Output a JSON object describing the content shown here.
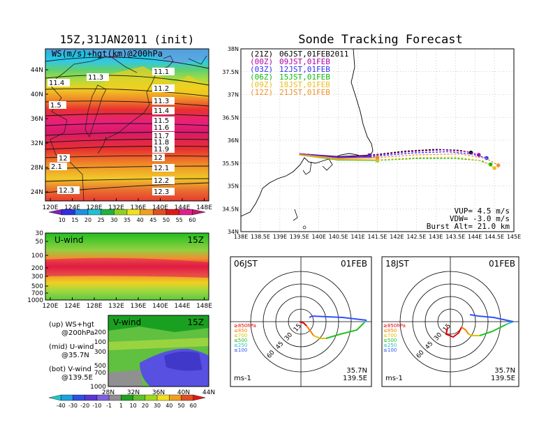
{
  "left": {
    "title": "15Z,31JAN2011 (init)",
    "map_label": "WS(m/s)+hgt(km)@200hPa",
    "lat_ticks": [
      "44N",
      "40N",
      "36N",
      "32N",
      "28N",
      "24N"
    ],
    "lon_ticks": [
      "120E",
      "124E",
      "128E",
      "132E",
      "136E",
      "140E",
      "144E",
      "148E"
    ],
    "contours": [
      "11.1",
      "11.2",
      "11.3",
      "11.4",
      "11.5",
      "11.6",
      "11.7",
      "11.8",
      "11.9",
      "12",
      "12.1",
      "12.2",
      "12.3"
    ],
    "contour_west": [
      "11.4",
      "11.3",
      "1.5",
      "12",
      "2.1",
      "12.3"
    ],
    "colorbar_ws": [
      "10",
      "15",
      "20",
      "25",
      "30",
      "35",
      "40",
      "45",
      "50",
      "55",
      "60"
    ],
    "u_title": "U-wind",
    "u_time": "15Z",
    "p_ticks": [
      "30",
      "50",
      "100",
      "200",
      "300",
      "500",
      "700",
      "1000"
    ],
    "v_title": "V-wind",
    "v_time": "15Z",
    "v_p_ticks": [
      "200",
      "100",
      "300",
      "500",
      "700",
      "1000"
    ],
    "v_lat_ticks": [
      "28N",
      "32N",
      "36N",
      "40N",
      "44N"
    ],
    "colorbar_uv": [
      "-40",
      "-30",
      "-20",
      "-10",
      "-1",
      "1",
      "10",
      "20",
      "30",
      "40",
      "50",
      "60"
    ],
    "legend": [
      {
        "a": "(up) WS+hgt",
        "b": "@200hPa"
      },
      {
        "a": "(mid) U-wind",
        "b": "@35.7N"
      },
      {
        "a": "(bot) V-wind",
        "b": "@139.5E"
      }
    ]
  },
  "right": {
    "title": "Sonde Tracking Forecast",
    "times": [
      {
        "z": "(21Z)",
        "jst": "06JST,01FEB2011",
        "color": "#000000"
      },
      {
        "z": "(00Z)",
        "jst": "09JST,01FEB",
        "color": "#b000b0"
      },
      {
        "z": "(03Z)",
        "jst": "12JST,01FEB",
        "color": "#3030ff"
      },
      {
        "z": "(06Z)",
        "jst": "15JST,01FEB",
        "color": "#10b810"
      },
      {
        "z": "(09Z)",
        "jst": "18JST,01FEB",
        "color": "#e8c020"
      },
      {
        "z": "(12Z)",
        "jst": "21JST,01FEB",
        "color": "#f09030"
      }
    ],
    "lat_ticks": [
      "38N",
      "37.5N",
      "37N",
      "36.5N",
      "36N",
      "35.5N",
      "35N",
      "34.5N",
      "34N"
    ],
    "lon_ticks": [
      "138E",
      "138.5E",
      "139E",
      "139.5E",
      "140E",
      "140.5E",
      "141E",
      "141.5E",
      "142E",
      "142.5E",
      "143E",
      "143.5E",
      "144E",
      "144.5E",
      "145E"
    ],
    "vup": "VUP= 4.5 m/s",
    "vdw": "VDW= -3.0 m/s",
    "burst": "Burst Alt= 21.0 km"
  },
  "hodographs": [
    {
      "time": "06JST",
      "date": "01FEB",
      "lat": "35.7N",
      "lon": "139.5E",
      "unit": "ms-1"
    },
    {
      "time": "18JST",
      "date": "01FEB",
      "lat": "35.7N",
      "lon": "139.5E",
      "unit": "ms-1"
    }
  ],
  "hodo_rings": [
    "15",
    "30",
    "45",
    "60"
  ],
  "hodo_legend": [
    {
      "t": "≥850hPa",
      "c": "#e00000"
    },
    {
      "t": "≤850",
      "c": "#f08000"
    },
    {
      "t": "≤700",
      "c": "#e0c000"
    },
    {
      "t": "≤500",
      "c": "#20c020"
    },
    {
      "t": "≤250",
      "c": "#20c0c0"
    },
    {
      "t": "≤100",
      "c": "#3050ff"
    }
  ],
  "chart_data": {
    "type": "line",
    "title": "Sonde Tracking Forecast",
    "xlim": [
      138,
      145
    ],
    "ylim": [
      34,
      38
    ],
    "series": [
      {
        "name": "(21Z) 06JST,01FEB2011",
        "color": "#000000",
        "x": [
          139.5,
          140.5,
          141.3,
          142.2,
          143.0,
          143.6,
          143.9
        ],
        "y": [
          35.7,
          35.64,
          35.67,
          35.76,
          35.8,
          35.78,
          35.73
        ]
      },
      {
        "name": "(00Z) 09JST,01FEB",
        "color": "#b000b0",
        "x": [
          139.5,
          140.5,
          141.3,
          142.3,
          143.2,
          143.8,
          144.1
        ],
        "y": [
          35.7,
          35.63,
          35.66,
          35.75,
          35.79,
          35.75,
          35.68
        ]
      },
      {
        "name": "(03Z) 12JST,01FEB",
        "color": "#3030ff",
        "x": [
          139.5,
          140.5,
          141.3,
          142.4,
          143.3,
          143.9,
          144.3
        ],
        "y": [
          35.7,
          35.62,
          35.64,
          35.72,
          35.75,
          35.7,
          35.61
        ]
      },
      {
        "name": "(06Z) 15JST,01FEB",
        "color": "#10b810",
        "x": [
          139.5,
          140.5,
          141.5,
          142.5,
          143.5,
          144.1,
          144.4
        ],
        "y": [
          35.68,
          35.57,
          35.56,
          35.6,
          35.6,
          35.56,
          35.47
        ]
      },
      {
        "name": "(09Z) 18JST,01FEB",
        "color": "#e8c020",
        "x": [
          139.5,
          140.5,
          141.5,
          142.5,
          143.5,
          144.2,
          144.5
        ],
        "y": [
          35.68,
          35.58,
          35.57,
          35.62,
          35.63,
          35.55,
          35.39
        ]
      },
      {
        "name": "(12Z) 21JST,01FEB",
        "color": "#f09030",
        "x": [
          139.5,
          140.5,
          141.5,
          142.5,
          143.6,
          144.3,
          144.6
        ],
        "y": [
          35.69,
          35.6,
          35.62,
          35.68,
          35.7,
          35.6,
          35.45
        ]
      }
    ]
  }
}
